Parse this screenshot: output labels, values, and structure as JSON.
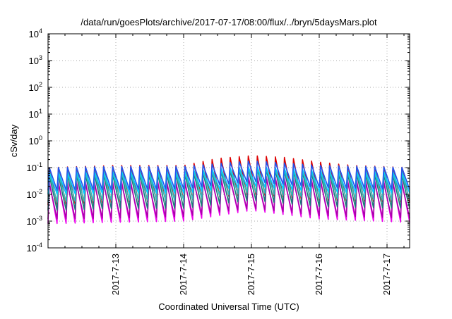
{
  "chart_data": {
    "type": "line",
    "title": "/data/run/goesPlots/archive/2017-07-17/08:00/flux/../bryn/5daysMars.plot",
    "xlabel": "Coordinated Universal Time (UTC)",
    "ylabel": "cSv/day",
    "yscale": "log",
    "ylim": [
      0.0001,
      10000
    ],
    "xlim": [
      "2017-07-12T00:00",
      "2017-07-17T08:00"
    ],
    "grid": true,
    "legend": "none",
    "y_ticks": [
      {
        "value": 0.0001,
        "base": "10",
        "exp": "-4"
      },
      {
        "value": 0.001,
        "base": "10",
        "exp": "-3"
      },
      {
        "value": 0.01,
        "base": "10",
        "exp": "-2"
      },
      {
        "value": 0.1,
        "base": "10",
        "exp": "-1"
      },
      {
        "value": 1,
        "base": "10",
        "exp": "0"
      },
      {
        "value": 10,
        "base": "10",
        "exp": "1"
      },
      {
        "value": 100,
        "base": "10",
        "exp": "2"
      },
      {
        "value": 1000,
        "base": "10",
        "exp": "3"
      },
      {
        "value": 10000,
        "base": "10",
        "exp": "4"
      }
    ],
    "x_ticks": [
      {
        "value": "2017-07-13",
        "label": "2017-7-13"
      },
      {
        "value": "2017-07-14",
        "label": "2017-7-14"
      },
      {
        "value": "2017-07-15",
        "label": "2017-7-15"
      },
      {
        "value": "2017-07-16",
        "label": "2017-7-16"
      },
      {
        "value": "2017-07-17",
        "label": "2017-7-17"
      }
    ],
    "sawtooth_period_hours": 3.2,
    "series": [
      {
        "color": "#dd0000",
        "peaks": [
          [
            "2017-07-12T00:00",
            0.1
          ],
          [
            "2017-07-13T00:00",
            0.12
          ],
          [
            "2017-07-14T00:00",
            0.12
          ],
          [
            "2017-07-14T12:00",
            0.22
          ],
          [
            "2017-07-15T00:00",
            0.28
          ],
          [
            "2017-07-15T12:00",
            0.24
          ],
          [
            "2017-07-16T00:00",
            0.16
          ],
          [
            "2017-07-16T12:00",
            0.12
          ],
          [
            "2017-07-17T08:00",
            0.1
          ]
        ],
        "troughs": [
          [
            "2017-07-12T00:00",
            0.004
          ],
          [
            "2017-07-13T00:00",
            0.005
          ],
          [
            "2017-07-14T00:00",
            0.006
          ],
          [
            "2017-07-15T00:00",
            0.01
          ],
          [
            "2017-07-16T00:00",
            0.006
          ],
          [
            "2017-07-17T08:00",
            0.005
          ]
        ]
      },
      {
        "color": "#ee00ee",
        "peaks": [
          [
            "2017-07-12T00:00",
            0.03
          ],
          [
            "2017-07-13T00:00",
            0.03
          ],
          [
            "2017-07-14T00:00",
            0.03
          ],
          [
            "2017-07-15T00:00",
            0.05
          ],
          [
            "2017-07-16T00:00",
            0.035
          ],
          [
            "2017-07-17T08:00",
            0.03
          ]
        ],
        "troughs": [
          [
            "2017-07-12T00:00",
            0.0008
          ],
          [
            "2017-07-13T00:00",
            0.0009
          ],
          [
            "2017-07-14T00:00",
            0.001
          ],
          [
            "2017-07-15T00:00",
            0.0025
          ],
          [
            "2017-07-16T00:00",
            0.0012
          ],
          [
            "2017-07-17T08:00",
            0.0009
          ]
        ]
      },
      {
        "color": "#aa00aa",
        "peaks": [
          [
            "2017-07-12T00:00",
            0.025
          ],
          [
            "2017-07-13T00:00",
            0.025
          ],
          [
            "2017-07-14T00:00",
            0.025
          ],
          [
            "2017-07-15T00:00",
            0.04
          ],
          [
            "2017-07-16T00:00",
            0.03
          ],
          [
            "2017-07-17T08:00",
            0.025
          ]
        ],
        "troughs": [
          [
            "2017-07-12T00:00",
            0.0012
          ],
          [
            "2017-07-13T00:00",
            0.0013
          ],
          [
            "2017-07-14T00:00",
            0.0015
          ],
          [
            "2017-07-15T00:00",
            0.003
          ],
          [
            "2017-07-16T00:00",
            0.0016
          ],
          [
            "2017-07-17T08:00",
            0.0013
          ]
        ]
      },
      {
        "color": "#1a7a7a",
        "peaks": [
          [
            "2017-07-12T00:00",
            0.05
          ],
          [
            "2017-07-13T00:00",
            0.055
          ],
          [
            "2017-07-14T00:00",
            0.055
          ],
          [
            "2017-07-15T00:00",
            0.09
          ],
          [
            "2017-07-16T00:00",
            0.06
          ],
          [
            "2017-07-17T08:00",
            0.05
          ]
        ],
        "troughs": [
          [
            "2017-07-12T00:00",
            0.0025
          ],
          [
            "2017-07-13T00:00",
            0.003
          ],
          [
            "2017-07-14T00:00",
            0.003
          ],
          [
            "2017-07-15T00:00",
            0.006
          ],
          [
            "2017-07-16T00:00",
            0.0035
          ],
          [
            "2017-07-17T08:00",
            0.003
          ]
        ]
      },
      {
        "color": "#33bbbb",
        "peaks": [
          [
            "2017-07-12T00:00",
            0.06
          ],
          [
            "2017-07-13T00:00",
            0.065
          ],
          [
            "2017-07-14T00:00",
            0.065
          ],
          [
            "2017-07-15T00:00",
            0.1
          ],
          [
            "2017-07-16T00:00",
            0.07
          ],
          [
            "2017-07-17T08:00",
            0.06
          ]
        ],
        "troughs": [
          [
            "2017-07-12T00:00",
            0.005
          ],
          [
            "2017-07-13T00:00",
            0.006
          ],
          [
            "2017-07-14T00:00",
            0.006
          ],
          [
            "2017-07-15T00:00",
            0.012
          ],
          [
            "2017-07-16T00:00",
            0.007
          ],
          [
            "2017-07-17T08:00",
            0.006
          ]
        ]
      },
      {
        "color": "#00ccff",
        "peaks": [
          [
            "2017-07-12T00:00",
            0.07
          ],
          [
            "2017-07-13T00:00",
            0.075
          ],
          [
            "2017-07-14T00:00",
            0.075
          ],
          [
            "2017-07-15T00:00",
            0.11
          ],
          [
            "2017-07-16T00:00",
            0.08
          ],
          [
            "2017-07-17T08:00",
            0.07
          ]
        ],
        "troughs": [
          [
            "2017-07-12T00:00",
            0.01
          ],
          [
            "2017-07-13T00:00",
            0.011
          ],
          [
            "2017-07-14T00:00",
            0.011
          ],
          [
            "2017-07-15T00:00",
            0.02
          ],
          [
            "2017-07-16T00:00",
            0.012
          ],
          [
            "2017-07-17T08:00",
            0.011
          ]
        ]
      },
      {
        "color": "#2255ee",
        "peaks": [
          [
            "2017-07-12T00:00",
            0.1
          ],
          [
            "2017-07-13T00:00",
            0.11
          ],
          [
            "2017-07-14T00:00",
            0.11
          ],
          [
            "2017-07-15T00:00",
            0.18
          ],
          [
            "2017-07-16T00:00",
            0.12
          ],
          [
            "2017-07-17T08:00",
            0.1
          ]
        ],
        "troughs": [
          [
            "2017-07-12T00:00",
            0.014
          ],
          [
            "2017-07-13T00:00",
            0.015
          ],
          [
            "2017-07-14T00:00",
            0.016
          ],
          [
            "2017-07-15T00:00",
            0.03
          ],
          [
            "2017-07-16T00:00",
            0.018
          ],
          [
            "2017-07-17T08:00",
            0.015
          ]
        ]
      }
    ]
  }
}
